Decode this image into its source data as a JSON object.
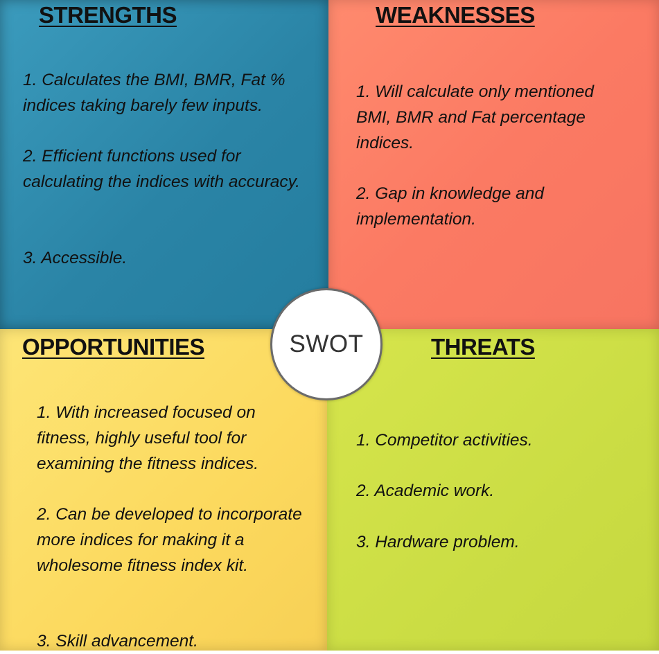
{
  "center": {
    "label": "SWOT"
  },
  "strengths": {
    "heading": "STRENGTHS",
    "items": [
      "1. Calculates the BMI, BMR, Fat % indices taking barely few inputs.",
      "2.  Efficient functions used for calculating the indices with accuracy.",
      "3. Accessible."
    ]
  },
  "weaknesses": {
    "heading": "WEAKNESSES",
    "items": [
      "1. Will calculate only mentioned BMI, BMR and Fat percentage indices.",
      "2. Gap in knowledge and implementation."
    ]
  },
  "opportunities": {
    "heading": "OPPORTUNITIES",
    "items": [
      "1. With increased focused on fitness, highly useful tool for examining the fitness indices.",
      "2. Can be developed to incorporate more indices for making it a wholesome fitness index kit.",
      "3. Skill advancement."
    ]
  },
  "threats": {
    "heading": "THREATS",
    "items": [
      "1. Competitor activities.",
      "2. Academic work.",
      "3. Hardware problem."
    ]
  },
  "colors": {
    "strengths": "#2a84a6",
    "weaknesses": "#fb7a63",
    "opportunities": "#fcd95e",
    "threats": "#cbdd44",
    "circle_border": "#6b6b6b"
  }
}
